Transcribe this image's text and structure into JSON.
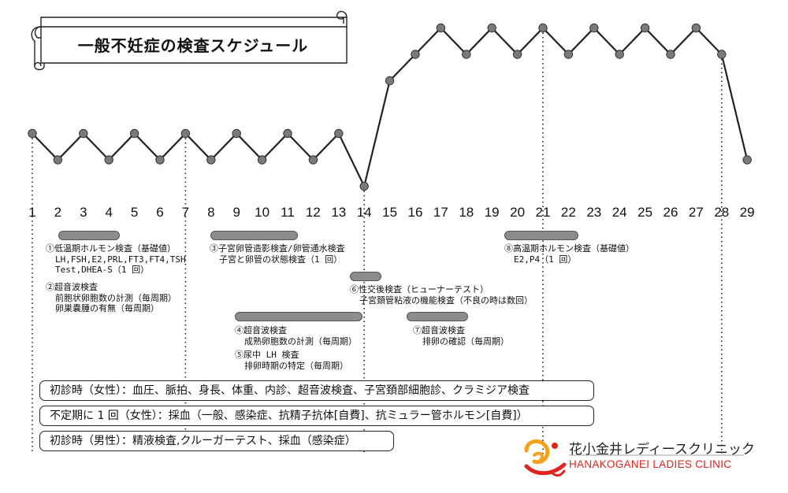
{
  "title": "一般不妊症の検査スケジュール",
  "chart_data": {
    "type": "line",
    "x": [
      1,
      2,
      3,
      4,
      5,
      6,
      7,
      8,
      9,
      10,
      11,
      12,
      13,
      14,
      15,
      16,
      17,
      18,
      19,
      20,
      21,
      22,
      23,
      24,
      25,
      26,
      27,
      28,
      29
    ],
    "y": [
      1,
      0,
      1,
      0,
      1,
      0,
      1,
      0,
      1,
      0,
      1,
      0,
      1,
      -1,
      3,
      4,
      5,
      4,
      5,
      4,
      5,
      4,
      5,
      4,
      5,
      4,
      5,
      4,
      0
    ],
    "x_tick_labels": [
      "1",
      "2",
      "3",
      "4",
      "5",
      "6",
      "7",
      "8",
      "9",
      "10",
      "11",
      "12",
      "13",
      "14",
      "15",
      "16",
      "17",
      "18",
      "19",
      "20",
      "21",
      "22",
      "23",
      "24",
      "25",
      "26",
      "27",
      "28",
      "29"
    ],
    "reference_days": [
      1,
      7,
      14,
      21,
      28
    ],
    "marker_color": "#7a7a7a",
    "line_color": "#222222"
  },
  "tests": [
    {
      "id": "test-1",
      "bar": [
        2,
        4
      ],
      "lines": [
        "①低温期ホルモン検査（基礎値）",
        "LH,FSH,E2,PRL,FT3,FT4,TSH",
        "Test,DHEA-S（1 回）"
      ]
    },
    {
      "id": "test-2",
      "bar": null,
      "lines": [
        "②超音波検査",
        "前胞状卵胞数の計測（毎周期）",
        "卵巣嚢腫の有無（毎周期）"
      ]
    },
    {
      "id": "test-3",
      "bar": [
        8,
        11
      ],
      "lines": [
        "③子宮卵管造影検査/卵管通水検査",
        "子宮と卵管の状態検査（1 回）"
      ]
    },
    {
      "id": "test-4",
      "bar": [
        9,
        14
      ],
      "lines": [
        "④超音波検査",
        "成熟卵胞数の計測（毎周期）"
      ]
    },
    {
      "id": "test-5",
      "bar": null,
      "lines": [
        "⑤尿中 LH 検査",
        "排卵時期の特定（毎周期）"
      ]
    },
    {
      "id": "test-6",
      "bar": [
        14,
        15
      ],
      "lines": [
        "⑥性交後検査（ヒューナーテスト）",
        "子宮頚管粘液の機能検査（不良の時は数回）"
      ]
    },
    {
      "id": "test-7",
      "bar": [
        16,
        18
      ],
      "lines": [
        "⑦超音波検査",
        "排卵の確認（毎周期）"
      ]
    },
    {
      "id": "test-8",
      "bar": [
        20,
        22
      ],
      "lines": [
        "⑧高温期ホルモン検査（基礎値）",
        "E2,P4（1 回）"
      ]
    }
  ],
  "boxes": [
    "初診時（女性）：血圧、脈拍、身長、体重、内診、超音波検査、子宮頚部細胞診、クラミジア検査",
    "不定期に 1 回（女性）：採血（一般、感染症、抗精子抗体[自費]、抗ミュラー管ホルモン[自費]）",
    "初診時（男性）：精液検査,クルーガーテスト、採血（感染症）"
  ],
  "logo": {
    "name_ja": "花小金井レディースクリニック",
    "name_en": "HANAKOGANEI LADIES CLINIC",
    "brand_color": "#e0231c",
    "accent_color": "#f4a11d"
  }
}
